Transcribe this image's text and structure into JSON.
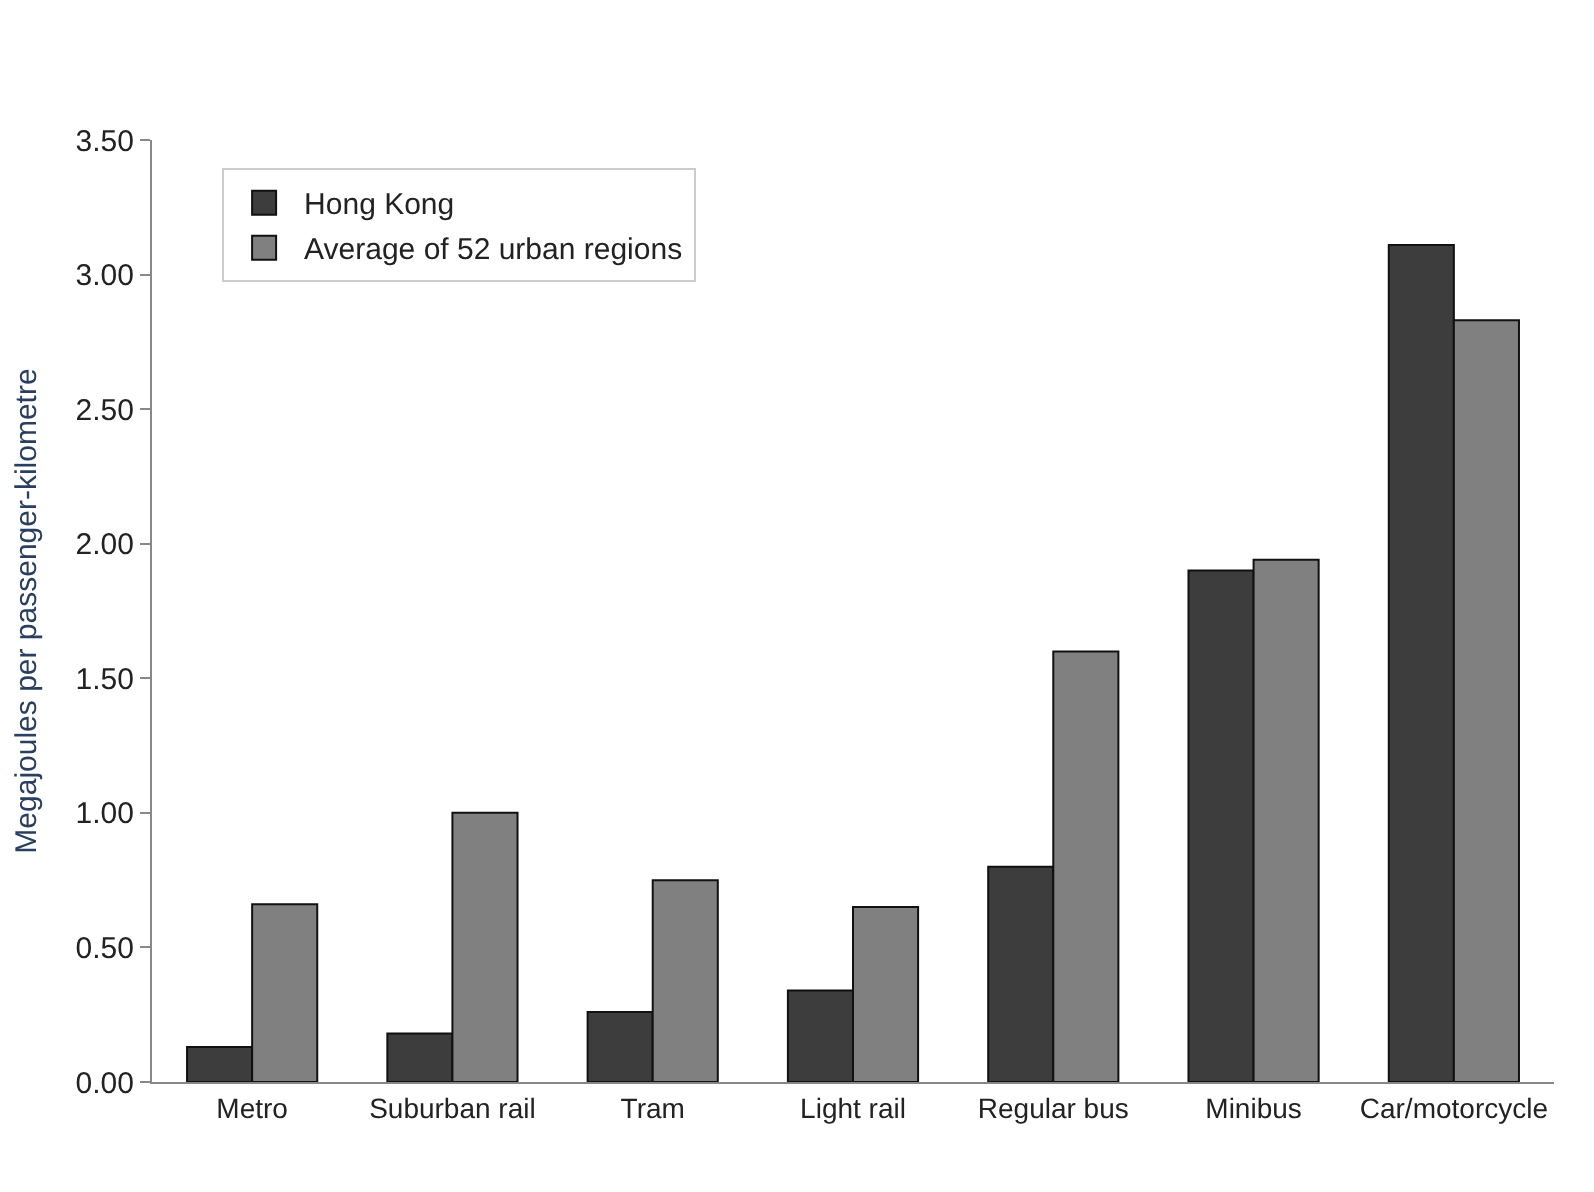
{
  "chart_data": {
    "type": "bar",
    "ylabel": "Megajoules per passenger-kilometre",
    "categories": [
      "Metro",
      "Suburban rail",
      "Tram",
      "Light rail",
      "Regular bus",
      "Minibus",
      "Car/motorcycle"
    ],
    "series": [
      {
        "name": "Hong Kong",
        "color": "#3d3d3d",
        "values": [
          0.13,
          0.18,
          0.26,
          0.34,
          0.8,
          1.9,
          3.11
        ]
      },
      {
        "name": "Average of 52 urban regions",
        "color": "#808080",
        "values": [
          0.66,
          1.0,
          0.75,
          0.65,
          1.6,
          1.94,
          2.83
        ]
      }
    ],
    "ylim": [
      0,
      3.5
    ],
    "yticks": [
      {
        "value": 0,
        "label": "0.00"
      },
      {
        "value": 0.5,
        "label": "0.50"
      },
      {
        "value": 1,
        "label": "1.00"
      },
      {
        "value": 1.5,
        "label": "1.50"
      },
      {
        "value": 2,
        "label": "2.00"
      },
      {
        "value": 2.5,
        "label": "2.50"
      },
      {
        "value": 3,
        "label": "3.00"
      },
      {
        "value": 3.5,
        "label": "3.50"
      }
    ],
    "grid": false,
    "legend": "top left"
  }
}
